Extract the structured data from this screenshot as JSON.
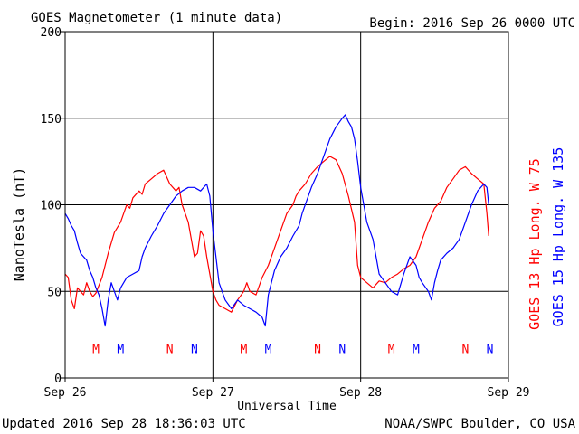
{
  "title": "GOES Magnetometer (1 minute data)",
  "begin_label": "Begin:  2016 Sep 26 0000 UTC",
  "updated_label": "Updated 2016 Sep 28 18:36:03 UTC",
  "source_label": "NOAA/SWPC Boulder, CO USA",
  "colors": {
    "goes13": "#ff0000",
    "goes15": "#0000ff",
    "axis": "#000000",
    "background": "#ffffff"
  },
  "chart_data": {
    "type": "line",
    "title": "GOES Magnetometer (1 minute data)",
    "xlabel": "Universal Time",
    "ylabel": "NanoTesla (nT)",
    "x_unit": "hours since 2016 Sep 26 0000 UTC",
    "xlim": [
      0,
      72
    ],
    "ylim": [
      0,
      200
    ],
    "y_ticks": [
      0,
      50,
      100,
      150,
      200
    ],
    "x_ticks": [
      {
        "x": 0,
        "label": "Sep 26"
      },
      {
        "x": 24,
        "label": "Sep 27"
      },
      {
        "x": 48,
        "label": "Sep 28"
      },
      {
        "x": 72,
        "label": "Sep 29"
      }
    ],
    "grid": true,
    "legend_placement": "right, vertical",
    "series": [
      {
        "name": "GOES 13 Hp",
        "legend_label": "GOES 13 Hp  Long. W 75",
        "color": "#ff0000",
        "points": [
          [
            0,
            60
          ],
          [
            0.5,
            58
          ],
          [
            1,
            45
          ],
          [
            1.5,
            40
          ],
          [
            2,
            52
          ],
          [
            2.5,
            50
          ],
          [
            3,
            48
          ],
          [
            3.5,
            55
          ],
          [
            4,
            50
          ],
          [
            4.5,
            47
          ],
          [
            5,
            49
          ],
          [
            6,
            58
          ],
          [
            6.5,
            65
          ],
          [
            7,
            72
          ],
          [
            7.5,
            78
          ],
          [
            8,
            84
          ],
          [
            9,
            90
          ],
          [
            9.5,
            95
          ],
          [
            10,
            100
          ],
          [
            10.5,
            98
          ],
          [
            11,
            104
          ],
          [
            12,
            108
          ],
          [
            12.5,
            106
          ],
          [
            13,
            112
          ],
          [
            14,
            115
          ],
          [
            15,
            118
          ],
          [
            16,
            120
          ],
          [
            16.5,
            116
          ],
          [
            17,
            112
          ],
          [
            18,
            108
          ],
          [
            18.5,
            110
          ],
          [
            19,
            100
          ],
          [
            20,
            90
          ],
          [
            20.5,
            80
          ],
          [
            21,
            70
          ],
          [
            21.5,
            72
          ],
          [
            22,
            85
          ],
          [
            22.5,
            82
          ],
          [
            23,
            70
          ],
          [
            23.5,
            60
          ],
          [
            24,
            50
          ],
          [
            24.5,
            45
          ],
          [
            25,
            42
          ],
          [
            26,
            40
          ],
          [
            27,
            38
          ],
          [
            28,
            45
          ],
          [
            29,
            50
          ],
          [
            29.5,
            55
          ],
          [
            30,
            50
          ],
          [
            31,
            48
          ],
          [
            32,
            58
          ],
          [
            33,
            65
          ],
          [
            34,
            75
          ],
          [
            35,
            85
          ],
          [
            36,
            95
          ],
          [
            37,
            100
          ],
          [
            37.5,
            105
          ],
          [
            38,
            108
          ],
          [
            39,
            112
          ],
          [
            40,
            118
          ],
          [
            41,
            122
          ],
          [
            42,
            125
          ],
          [
            43,
            128
          ],
          [
            44,
            126
          ],
          [
            45,
            118
          ],
          [
            46,
            105
          ],
          [
            47,
            90
          ],
          [
            47.5,
            65
          ],
          [
            48,
            58
          ],
          [
            49,
            55
          ],
          [
            50,
            52
          ],
          [
            51,
            56
          ],
          [
            52,
            55
          ],
          [
            53,
            58
          ],
          [
            54,
            60
          ],
          [
            55,
            63
          ],
          [
            56,
            65
          ],
          [
            57,
            70
          ],
          [
            58,
            80
          ],
          [
            59,
            90
          ],
          [
            60,
            98
          ],
          [
            61,
            102
          ],
          [
            62,
            110
          ],
          [
            63,
            115
          ],
          [
            64,
            120
          ],
          [
            65,
            122
          ],
          [
            66,
            118
          ],
          [
            67,
            115
          ],
          [
            68,
            112
          ],
          [
            68.5,
            95
          ],
          [
            68.8,
            82
          ]
        ]
      },
      {
        "name": "GOES 15 Hp",
        "legend_label": "GOES 15 Hp  Long. W 135",
        "color": "#0000ff",
        "points": [
          [
            0,
            95
          ],
          [
            0.5,
            92
          ],
          [
            1,
            88
          ],
          [
            1.5,
            85
          ],
          [
            2,
            78
          ],
          [
            2.5,
            72
          ],
          [
            3,
            70
          ],
          [
            3.5,
            68
          ],
          [
            4,
            62
          ],
          [
            4.5,
            58
          ],
          [
            5,
            52
          ],
          [
            5.5,
            48
          ],
          [
            6,
            40
          ],
          [
            6.5,
            30
          ],
          [
            7,
            45
          ],
          [
            7.5,
            55
          ],
          [
            8,
            50
          ],
          [
            8.5,
            45
          ],
          [
            9,
            52
          ],
          [
            10,
            58
          ],
          [
            11,
            60
          ],
          [
            12,
            62
          ],
          [
            12.5,
            70
          ],
          [
            13,
            75
          ],
          [
            14,
            82
          ],
          [
            15,
            88
          ],
          [
            16,
            95
          ],
          [
            17,
            100
          ],
          [
            18,
            105
          ],
          [
            19,
            108
          ],
          [
            20,
            110
          ],
          [
            21,
            110
          ],
          [
            22,
            108
          ],
          [
            23,
            112
          ],
          [
            23.5,
            105
          ],
          [
            24,
            85
          ],
          [
            24.5,
            70
          ],
          [
            25,
            55
          ],
          [
            26,
            45
          ],
          [
            27,
            40
          ],
          [
            28,
            45
          ],
          [
            29,
            42
          ],
          [
            30,
            40
          ],
          [
            31,
            38
          ],
          [
            32,
            35
          ],
          [
            32.5,
            30
          ],
          [
            33,
            48
          ],
          [
            33.5,
            55
          ],
          [
            34,
            62
          ],
          [
            35,
            70
          ],
          [
            36,
            75
          ],
          [
            37,
            82
          ],
          [
            38,
            88
          ],
          [
            38.5,
            95
          ],
          [
            39,
            100
          ],
          [
            40,
            110
          ],
          [
            41,
            118
          ],
          [
            42,
            128
          ],
          [
            43,
            138
          ],
          [
            44,
            145
          ],
          [
            45,
            150
          ],
          [
            45.5,
            152
          ],
          [
            46,
            148
          ],
          [
            46.5,
            145
          ],
          [
            47,
            138
          ],
          [
            47.5,
            125
          ],
          [
            48,
            110
          ],
          [
            48.5,
            100
          ],
          [
            49,
            90
          ],
          [
            50,
            80
          ],
          [
            50.5,
            70
          ],
          [
            51,
            60
          ],
          [
            52,
            55
          ],
          [
            53,
            50
          ],
          [
            54,
            48
          ],
          [
            55,
            60
          ],
          [
            56,
            70
          ],
          [
            57,
            65
          ],
          [
            57.5,
            58
          ],
          [
            58,
            55
          ],
          [
            59,
            50
          ],
          [
            59.5,
            45
          ],
          [
            60,
            55
          ],
          [
            60.5,
            62
          ],
          [
            61,
            68
          ],
          [
            62,
            72
          ],
          [
            63,
            75
          ],
          [
            64,
            80
          ],
          [
            65,
            90
          ],
          [
            66,
            100
          ],
          [
            67,
            108
          ],
          [
            68,
            112
          ],
          [
            68.5,
            110
          ],
          [
            68.8,
            100
          ]
        ]
      }
    ],
    "midnight_markers": [
      {
        "label": "M",
        "x": 5.0,
        "series": "GOES 13 Hp"
      },
      {
        "label": "M",
        "x": 9.0,
        "series": "GOES 15 Hp"
      },
      {
        "label": "N",
        "x": 17.0,
        "series": "GOES 13 Hp"
      },
      {
        "label": "N",
        "x": 21.0,
        "series": "GOES 15 Hp"
      },
      {
        "label": "M",
        "x": 29.0,
        "series": "GOES 13 Hp"
      },
      {
        "label": "M",
        "x": 33.0,
        "series": "GOES 15 Hp"
      },
      {
        "label": "N",
        "x": 41.0,
        "series": "GOES 13 Hp"
      },
      {
        "label": "N",
        "x": 45.0,
        "series": "GOES 15 Hp"
      },
      {
        "label": "M",
        "x": 53.0,
        "series": "GOES 13 Hp"
      },
      {
        "label": "M",
        "x": 57.0,
        "series": "GOES 15 Hp"
      },
      {
        "label": "N",
        "x": 65.0,
        "series": "GOES 13 Hp"
      },
      {
        "label": "N",
        "x": 69.0,
        "series": "GOES 15 Hp"
      }
    ],
    "marker_y": 17
  }
}
